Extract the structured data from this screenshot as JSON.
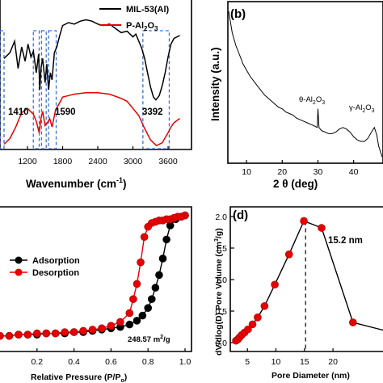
{
  "chart_data": [
    {
      "panel": "",
      "type": "line",
      "xlabel": "Wavenumber (cm",
      "xlabel_sup": "-1",
      "x_ticks": [
        "1200",
        "1800",
        "2400",
        "3000",
        "3600"
      ],
      "xlim": [
        800,
        4000
      ],
      "series": [
        {
          "name": "MIL-53(Al)",
          "color": "#000000",
          "x": [
            800,
            900,
            980,
            1040,
            1100,
            1160,
            1210,
            1260,
            1300,
            1350,
            1390,
            1410,
            1430,
            1460,
            1500,
            1530,
            1560,
            1590,
            1620,
            1660,
            1700,
            1750,
            1800,
            1900,
            2000,
            2100,
            2200,
            2300,
            2400,
            2500,
            2600,
            2700,
            2800,
            2900,
            3000,
            3050,
            3100,
            3150,
            3200,
            3250,
            3300,
            3350,
            3392,
            3450,
            3500,
            3550,
            3600,
            3650,
            3700,
            3800
          ],
          "y": [
            0.62,
            0.66,
            0.74,
            0.55,
            0.7,
            0.6,
            0.72,
            0.63,
            0.67,
            0.52,
            0.65,
            0.4,
            0.55,
            0.62,
            0.45,
            0.58,
            0.4,
            0.52,
            0.47,
            0.66,
            0.7,
            0.78,
            0.85,
            0.87,
            0.86,
            0.88,
            0.89,
            0.88,
            0.86,
            0.85,
            0.86,
            0.83,
            0.8,
            0.81,
            0.77,
            0.79,
            0.74,
            0.69,
            0.62,
            0.52,
            0.42,
            0.35,
            0.33,
            0.36,
            0.43,
            0.52,
            0.63,
            0.72,
            0.76,
            0.78
          ]
        },
        {
          "name": "P-Al2O3",
          "color": "#e60000",
          "x": [
            800,
            900,
            1000,
            1100,
            1200,
            1300,
            1350,
            1400,
            1430,
            1460,
            1500,
            1540,
            1580,
            1620,
            1680,
            1750,
            1800,
            1900,
            2000,
            2200,
            2400,
            2600,
            2800,
            2900,
            3000,
            3100,
            3200,
            3300,
            3400,
            3500,
            3600,
            3650,
            3700,
            3800
          ],
          "y": [
            0.02,
            0.06,
            0.14,
            0.24,
            0.27,
            0.23,
            0.18,
            0.1,
            0.2,
            0.25,
            0.15,
            0.17,
            0.2,
            0.14,
            0.26,
            0.31,
            0.35,
            0.36,
            0.37,
            0.38,
            0.38,
            0.37,
            0.34,
            0.32,
            0.27,
            0.22,
            0.13,
            0.05,
            0.01,
            0.03,
            0.1,
            0.14,
            0.17,
            0.2
          ]
        }
      ],
      "legend": [
        {
          "label": "MIL-53(Al)",
          "color": "#000000"
        },
        {
          "label_main": "P-Al",
          "sub1": "2",
          "mid": "O",
          "sub2": "3",
          "color": "#e60000"
        }
      ],
      "annotations": [
        "1410",
        "1590",
        "3392"
      ]
    },
    {
      "panel": "(b)",
      "type": "line",
      "xlabel": "2 θ (deg)",
      "ylabel": "Intensity (a.u.)",
      "xlim": [
        5,
        48
      ],
      "x_ticks": [
        "10",
        "20",
        "30",
        "40"
      ],
      "series": [
        {
          "name": "",
          "color": "#000000",
          "x": [
            5,
            5.5,
            6,
            7,
            8,
            9,
            10,
            11,
            12,
            13,
            14,
            15,
            16,
            17,
            18,
            19,
            20,
            21,
            22,
            23,
            24,
            25,
            26,
            27,
            28,
            29,
            29.8,
            30,
            30.3,
            31,
            32,
            33,
            34,
            35,
            36,
            37,
            38,
            39,
            40,
            41,
            42,
            43,
            44,
            45,
            45.8,
            46.5,
            47,
            48
          ],
          "y": [
            0.97,
            0.9,
            0.83,
            0.75,
            0.69,
            0.63,
            0.59,
            0.55,
            0.52,
            0.49,
            0.46,
            0.43,
            0.41,
            0.39,
            0.37,
            0.35,
            0.34,
            0.32,
            0.31,
            0.3,
            0.28,
            0.27,
            0.26,
            0.25,
            0.24,
            0.23,
            0.22,
            0.34,
            0.22,
            0.2,
            0.19,
            0.18,
            0.18,
            0.19,
            0.21,
            0.22,
            0.21,
            0.19,
            0.16,
            0.14,
            0.13,
            0.13,
            0.15,
            0.19,
            0.22,
            0.17,
            0.1,
            0.03
          ]
        }
      ],
      "annotations": [
        {
          "main": "θ-Al",
          "sub1": "2",
          "mid": "O",
          "sub2": "3"
        },
        {
          "main": "γ-Al",
          "sub1": "2",
          "mid": "O",
          "sub2": "3"
        }
      ]
    },
    {
      "panel": "",
      "type": "line",
      "xlabel": "Relative Pressure (P/P",
      "xlabel_sub": "o",
      "xlim": [
        0.0,
        1.0
      ],
      "x_ticks": [
        "0.2",
        "0.4",
        "0.6",
        "0.8",
        "1.0"
      ],
      "series": [
        {
          "name": "Adsorption",
          "color": "#000000",
          "x": [
            0.0,
            0.05,
            0.1,
            0.15,
            0.2,
            0.25,
            0.3,
            0.35,
            0.4,
            0.45,
            0.5,
            0.55,
            0.6,
            0.65,
            0.7,
            0.74,
            0.77,
            0.8,
            0.82,
            0.84,
            0.86,
            0.88,
            0.9,
            0.92,
            0.95,
            0.98,
            1.0
          ],
          "y": [
            0.04,
            0.04,
            0.05,
            0.05,
            0.05,
            0.06,
            0.06,
            0.06,
            0.07,
            0.07,
            0.08,
            0.09,
            0.1,
            0.11,
            0.13,
            0.16,
            0.2,
            0.26,
            0.33,
            0.42,
            0.52,
            0.65,
            0.8,
            0.91,
            0.96,
            0.98,
            0.99
          ]
        },
        {
          "name": "Desorption",
          "color": "#e60000",
          "x": [
            1.0,
            0.98,
            0.96,
            0.94,
            0.92,
            0.9,
            0.88,
            0.86,
            0.84,
            0.82,
            0.8,
            0.78,
            0.76,
            0.74,
            0.72,
            0.7,
            0.65,
            0.6,
            0.55,
            0.5,
            0.45,
            0.4,
            0.35,
            0.3,
            0.25,
            0.2,
            0.15,
            0.1,
            0.05,
            0.0
          ],
          "y": [
            0.99,
            0.98,
            0.98,
            0.97,
            0.96,
            0.96,
            0.95,
            0.95,
            0.94,
            0.93,
            0.9,
            0.82,
            0.62,
            0.45,
            0.33,
            0.22,
            0.15,
            0.12,
            0.1,
            0.09,
            0.08,
            0.07,
            0.07,
            0.06,
            0.06,
            0.06,
            0.05,
            0.05,
            0.04,
            0.04
          ]
        }
      ],
      "legend": [
        {
          "label": "Adsorption",
          "color": "#000000"
        },
        {
          "label": "Desorption",
          "color": "#e60000"
        }
      ],
      "annotation": {
        "main": "248.57 m",
        "sup": "2",
        "rest": "/g"
      }
    },
    {
      "panel": "(d)",
      "type": "line",
      "xlabel": "Pore Diameter (nm)",
      "ylabel": "dV/dlog(D) Pore Volume (cm",
      "ylabel_sup": "3",
      "ylabel_rest": "/g)",
      "xlim": [
        2,
        35
      ],
      "ylim": [
        0.0,
        2.0
      ],
      "x_ticks": [
        "5",
        "10",
        "15",
        "20"
      ],
      "y_ticks": [
        "0.0",
        "0.5",
        "1.0",
        "1.5",
        "2.0"
      ],
      "series": [
        {
          "name": "",
          "color": "#000000",
          "x": [
            3.0,
            3.3,
            3.6,
            4.0,
            4.5,
            5.1,
            5.9,
            6.8,
            8.0,
            9.8,
            12.3,
            14.9,
            18.0,
            23.5,
            33.0
          ],
          "y": [
            0.03,
            0.05,
            0.08,
            0.12,
            0.16,
            0.21,
            0.29,
            0.4,
            0.58,
            0.92,
            1.4,
            1.93,
            1.82,
            0.32,
            0.1
          ],
          "marker_color": "#e60000"
        }
      ],
      "marker_line": 15.2,
      "annotation": "15.2 nm"
    }
  ]
}
